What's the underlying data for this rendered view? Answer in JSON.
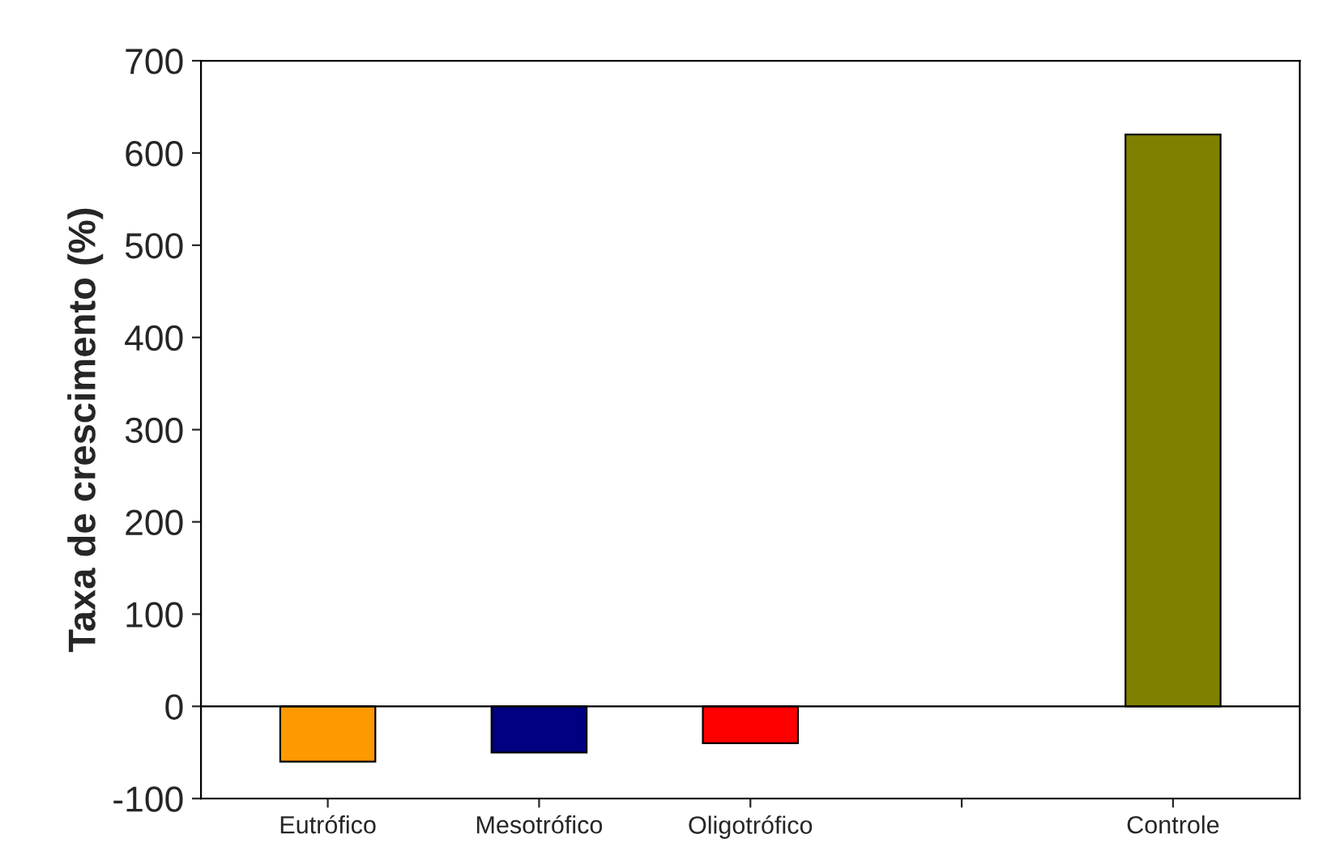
{
  "chart_data": {
    "type": "bar",
    "ylabel": "Taxa de crescimento (%)",
    "categories": [
      "Eutrófico",
      "Mesotrófico",
      "Oligotrófico",
      null,
      "Controle"
    ],
    "values": [
      -60,
      -50,
      -40,
      null,
      620
    ],
    "colors": [
      "#ff9900",
      "#000080",
      "#ff0000",
      "#808000",
      "#808000"
    ],
    "ylim": [
      -100,
      700
    ],
    "yticks": [
      -100,
      0,
      100,
      200,
      300,
      400,
      500,
      600,
      700
    ],
    "ref_lines": [
      {
        "axis": "y",
        "value": 0,
        "color": "#000000"
      }
    ]
  }
}
